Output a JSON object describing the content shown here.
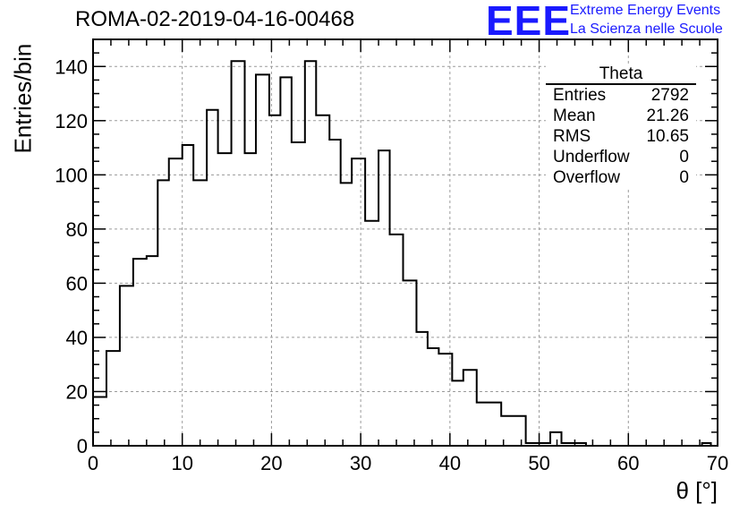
{
  "header": {
    "title": "ROMA-02-2019-04-16-00468",
    "logo_text": "EEE",
    "logo_line1": "Extreme Energy Events",
    "logo_line2": "La Scienza nelle Scuole",
    "logo_color": "#1a1aff"
  },
  "stats_box": {
    "title": "Theta",
    "rows": [
      {
        "label": "Entries",
        "value": "2792"
      },
      {
        "label": "Mean",
        "value": "21.26"
      },
      {
        "label": "RMS",
        "value": "10.65"
      },
      {
        "label": "Underflow",
        "value": "0"
      },
      {
        "label": "Overflow",
        "value": "0"
      }
    ]
  },
  "chart_data": {
    "type": "bar",
    "xlabel": "θ [°]",
    "ylabel": "Entries/bin",
    "xlim": [
      0,
      70
    ],
    "ylim": [
      0,
      150
    ],
    "xticks": [
      0,
      10,
      20,
      30,
      40,
      50,
      60,
      70
    ],
    "yticks": [
      0,
      20,
      40,
      60,
      80,
      100,
      120,
      140
    ],
    "grid": true,
    "bin_edges": [
      0,
      1.5,
      3,
      4.5,
      6,
      7.25,
      8.5,
      10,
      11.25,
      12.75,
      14,
      15.5,
      17,
      18.25,
      19.75,
      21,
      22.25,
      23.75,
      25,
      26.5,
      27.75,
      29,
      30.5,
      32,
      33.25,
      34.75,
      36.25,
      37.5,
      38.75,
      40.25,
      41.5,
      43,
      45.75,
      48.5,
      51.25,
      52.5,
      55.25,
      68.25,
      69.25
    ],
    "values": [
      18,
      35,
      59,
      69,
      70,
      98,
      106,
      111,
      98,
      124,
      108,
      142,
      108,
      137,
      122,
      136,
      112,
      142,
      122,
      113,
      97,
      106,
      83,
      109,
      78,
      61,
      42,
      36,
      34,
      24,
      28,
      16,
      11,
      1,
      5,
      1,
      0,
      1
    ]
  }
}
